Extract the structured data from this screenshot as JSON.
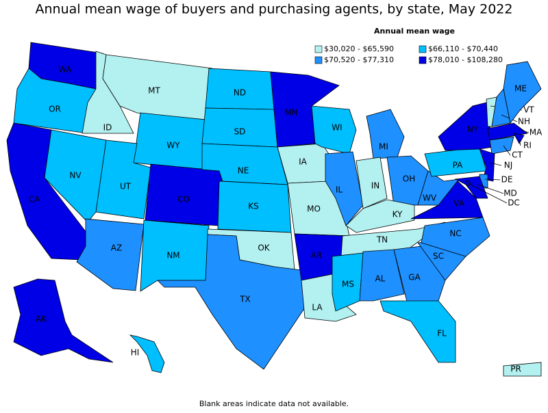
{
  "title": "Annual mean wage of buyers and purchasing agents, by state, May 2022",
  "legend": {
    "title": "Annual mean wage",
    "items": [
      {
        "label": "$30,020 - $65,590",
        "color": "#b3f0f0"
      },
      {
        "label": "$66,110 - $70,440",
        "color": "#00bfff"
      },
      {
        "label": "$70,520 - $77,310",
        "color": "#1e90ff"
      },
      {
        "label": "$78,010 - $108,280",
        "color": "#0000e6"
      }
    ]
  },
  "states": [
    {
      "label": "WA",
      "color": "#0000e6"
    },
    {
      "label": "OR",
      "color": "#00bfff"
    },
    {
      "label": "CA",
      "color": "#0000e6"
    },
    {
      "label": "NV",
      "color": "#00bfff"
    },
    {
      "label": "ID",
      "color": "#b3f0f0"
    },
    {
      "label": "MT",
      "color": "#b3f0f0"
    },
    {
      "label": "WY",
      "color": "#00bfff"
    },
    {
      "label": "UT",
      "color": "#00bfff"
    },
    {
      "label": "AZ",
      "color": "#1e90ff"
    },
    {
      "label": "CO",
      "color": "#0000e6"
    },
    {
      "label": "NM",
      "color": "#00bfff"
    },
    {
      "label": "ND",
      "color": "#00bfff"
    },
    {
      "label": "SD",
      "color": "#00bfff"
    },
    {
      "label": "NE",
      "color": "#00bfff"
    },
    {
      "label": "KS",
      "color": "#00bfff"
    },
    {
      "label": "OK",
      "color": "#b3f0f0"
    },
    {
      "label": "TX",
      "color": "#1e90ff"
    },
    {
      "label": "MN",
      "color": "#0000e6"
    },
    {
      "label": "IA",
      "color": "#b3f0f0"
    },
    {
      "label": "MO",
      "color": "#b3f0f0"
    },
    {
      "label": "AR",
      "color": "#0000e6"
    },
    {
      "label": "LA",
      "color": "#b3f0f0"
    },
    {
      "label": "WI",
      "color": "#00bfff"
    },
    {
      "label": "IL",
      "color": "#1e90ff"
    },
    {
      "label": "MI",
      "color": "#1e90ff"
    },
    {
      "label": "IN",
      "color": "#b3f0f0"
    },
    {
      "label": "OH",
      "color": "#1e90ff"
    },
    {
      "label": "KY",
      "color": "#b3f0f0"
    },
    {
      "label": "TN",
      "color": "#b3f0f0"
    },
    {
      "label": "MS",
      "color": "#00bfff"
    },
    {
      "label": "AL",
      "color": "#1e90ff"
    },
    {
      "label": "GA",
      "color": "#1e90ff"
    },
    {
      "label": "FL",
      "color": "#00bfff"
    },
    {
      "label": "SC",
      "color": "#1e90ff"
    },
    {
      "label": "NC",
      "color": "#1e90ff"
    },
    {
      "label": "VA",
      "color": "#0000e6"
    },
    {
      "label": "WV",
      "color": "#1e90ff"
    },
    {
      "label": "PA",
      "color": "#00bfff"
    },
    {
      "label": "NY",
      "color": "#0000e6"
    },
    {
      "label": "VT",
      "color": "#b3f0f0"
    },
    {
      "label": "NH",
      "color": "#1e90ff"
    },
    {
      "label": "ME",
      "color": "#1e90ff"
    },
    {
      "label": "MA",
      "color": "#0000e6"
    },
    {
      "label": "RI",
      "color": "#0000e6"
    },
    {
      "label": "CT",
      "color": "#1e90ff"
    },
    {
      "label": "NJ",
      "color": "#0000e6"
    },
    {
      "label": "DE",
      "color": "#1e90ff"
    },
    {
      "label": "MD",
      "color": "#0000e6"
    },
    {
      "label": "DC",
      "color": "#0000e6"
    },
    {
      "label": "AK",
      "color": "#0000e6"
    },
    {
      "label": "HI",
      "color": "#00bfff"
    },
    {
      "label": "PR",
      "color": "#b3f0f0"
    }
  ],
  "note": "Blank areas indicate data not available."
}
